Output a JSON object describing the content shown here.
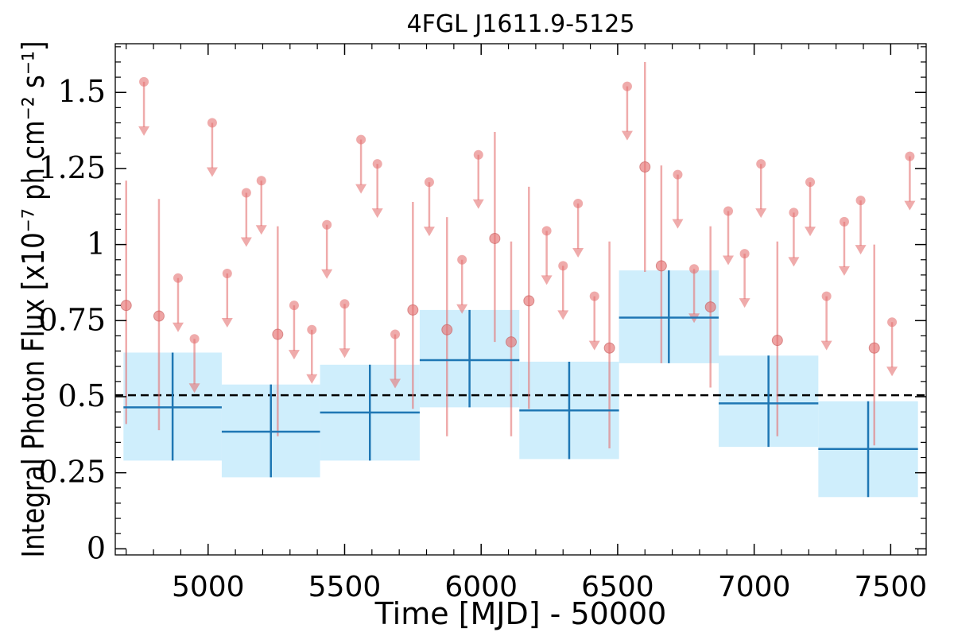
{
  "chart_data": {
    "type": "scatter",
    "title": "4FGL J1611.9-5125",
    "xlabel": "Time [MJD] - 50000",
    "ylabel": "Integral Photon Flux [x10⁻⁷ ph cm⁻² s⁻¹]",
    "xlim": [
      4660,
      7630
    ],
    "ylim": [
      -0.02,
      1.66
    ],
    "xticks": [
      5000,
      5500,
      6000,
      6500,
      7000,
      7500
    ],
    "xtick_labels": [
      "5000",
      "5500",
      "6000",
      "6500",
      "7000",
      "7500"
    ],
    "yticks": [
      0,
      0.25,
      0.5,
      0.75,
      1,
      1.25,
      1.5
    ],
    "ytick_labels": [
      "0",
      "0.25",
      "0.5",
      "0.75",
      "1",
      "1.25",
      "1.5"
    ],
    "mean_flux": 0.505,
    "colors": {
      "binned": "#1f77b4",
      "binned_band": "#cfeefc",
      "short": "#e57373",
      "mean_line": "#000000"
    },
    "series": [
      {
        "kind": "short-timescale detections",
        "points": [
          {
            "x": 4700,
            "y": 0.8,
            "lo": 0.41,
            "hi": 1.21
          },
          {
            "x": 4820,
            "y": 0.765,
            "lo": 0.39,
            "hi": 1.15
          },
          {
            "x": 5255,
            "y": 0.705,
            "lo": 0.37,
            "hi": 1.06
          },
          {
            "x": 5750,
            "y": 0.785,
            "lo": 0.46,
            "hi": 1.14
          },
          {
            "x": 5875,
            "y": 0.72,
            "lo": 0.37,
            "hi": 1.09
          },
          {
            "x": 6050,
            "y": 1.02,
            "lo": 0.68,
            "hi": 1.37
          },
          {
            "x": 6110,
            "y": 0.68,
            "lo": 0.37,
            "hi": 1.01
          },
          {
            "x": 6175,
            "y": 0.815,
            "lo": 0.46,
            "hi": 1.19
          },
          {
            "x": 6470,
            "y": 0.66,
            "lo": 0.33,
            "hi": 1.01
          },
          {
            "x": 6600,
            "y": 1.255,
            "lo": 0.91,
            "hi": 1.6
          },
          {
            "x": 6660,
            "y": 0.93,
            "lo": 0.61,
            "hi": 1.26
          },
          {
            "x": 6840,
            "y": 0.795,
            "lo": 0.53,
            "hi": 1.06
          },
          {
            "x": 7085,
            "y": 0.685,
            "lo": 0.37,
            "hi": 1.01
          },
          {
            "x": 7440,
            "y": 0.66,
            "lo": 0.34,
            "hi": 1.0
          }
        ]
      },
      {
        "kind": "short-timescale upper limits",
        "points": [
          {
            "x": 4765,
            "y": 1.535
          },
          {
            "x": 4890,
            "y": 0.89
          },
          {
            "x": 4950,
            "y": 0.69
          },
          {
            "x": 5015,
            "y": 1.4
          },
          {
            "x": 5070,
            "y": 0.905
          },
          {
            "x": 5140,
            "y": 1.17
          },
          {
            "x": 5195,
            "y": 1.21
          },
          {
            "x": 5315,
            "y": 0.8
          },
          {
            "x": 5380,
            "y": 0.72
          },
          {
            "x": 5435,
            "y": 1.065
          },
          {
            "x": 5500,
            "y": 0.805
          },
          {
            "x": 5560,
            "y": 1.345
          },
          {
            "x": 5620,
            "y": 1.265
          },
          {
            "x": 5685,
            "y": 0.705
          },
          {
            "x": 5810,
            "y": 1.205
          },
          {
            "x": 5930,
            "y": 0.95
          },
          {
            "x": 5990,
            "y": 1.295
          },
          {
            "x": 6240,
            "y": 1.045
          },
          {
            "x": 6300,
            "y": 0.93
          },
          {
            "x": 6355,
            "y": 1.135
          },
          {
            "x": 6415,
            "y": 0.83
          },
          {
            "x": 6535,
            "y": 1.52
          },
          {
            "x": 6720,
            "y": 1.23
          },
          {
            "x": 6780,
            "y": 0.92
          },
          {
            "x": 6905,
            "y": 1.11
          },
          {
            "x": 6965,
            "y": 0.97
          },
          {
            "x": 7025,
            "y": 1.265
          },
          {
            "x": 7145,
            "y": 1.105
          },
          {
            "x": 7205,
            "y": 1.205
          },
          {
            "x": 7265,
            "y": 0.83
          },
          {
            "x": 7330,
            "y": 1.075
          },
          {
            "x": 7390,
            "y": 1.145
          },
          {
            "x": 7505,
            "y": 0.745
          },
          {
            "x": 7570,
            "y": 1.29
          }
        ]
      },
      {
        "kind": "binned flux",
        "bins": [
          {
            "x0": 4690,
            "x1": 5050,
            "y": 0.465,
            "lo": 0.29,
            "hi": 0.645
          },
          {
            "x0": 5050,
            "x1": 5410,
            "y": 0.385,
            "lo": 0.235,
            "hi": 0.54
          },
          {
            "x0": 5410,
            "x1": 5775,
            "y": 0.448,
            "lo": 0.29,
            "hi": 0.605
          },
          {
            "x0": 5775,
            "x1": 6140,
            "y": 0.62,
            "lo": 0.465,
            "hi": 0.785
          },
          {
            "x0": 6140,
            "x1": 6505,
            "y": 0.455,
            "lo": 0.295,
            "hi": 0.615
          },
          {
            "x0": 6505,
            "x1": 6870,
            "y": 0.76,
            "lo": 0.61,
            "hi": 0.915
          },
          {
            "x0": 6870,
            "x1": 7235,
            "y": 0.478,
            "lo": 0.335,
            "hi": 0.635
          },
          {
            "x0": 7235,
            "x1": 7600,
            "y": 0.328,
            "lo": 0.17,
            "hi": 0.485
          }
        ]
      }
    ]
  }
}
